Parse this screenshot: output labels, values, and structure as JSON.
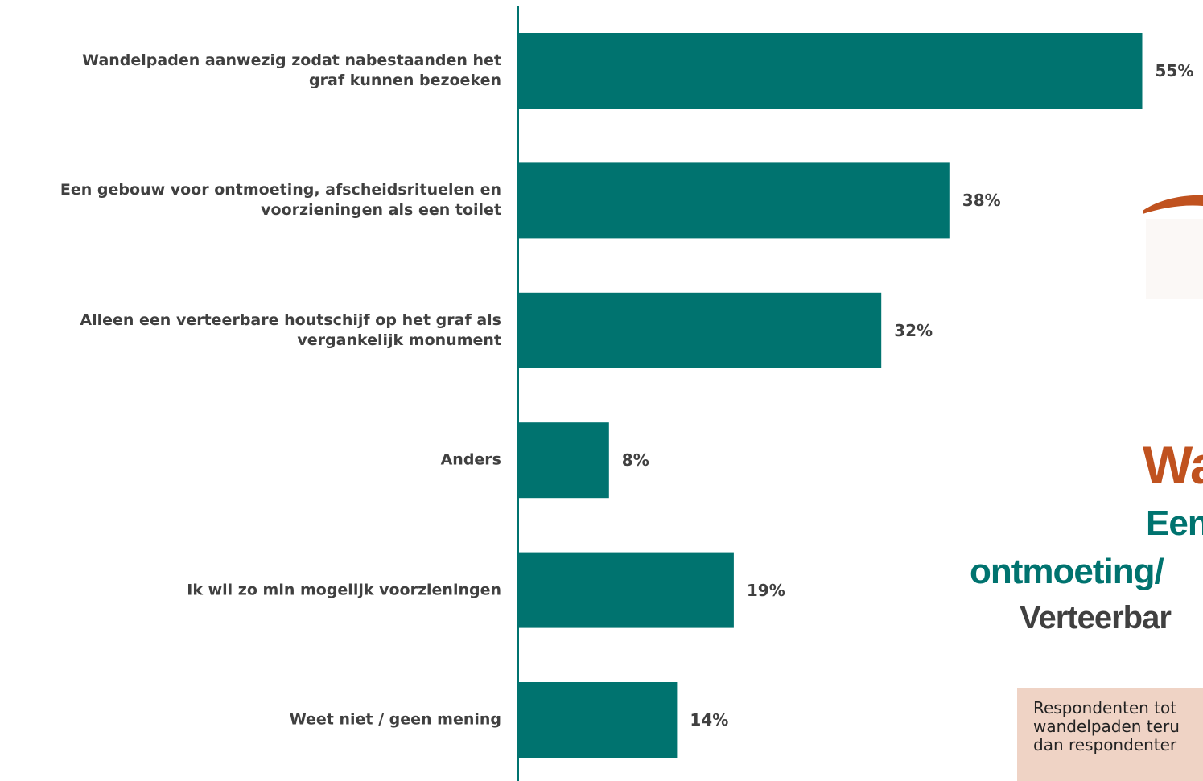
{
  "chart_data": {
    "type": "bar",
    "orientation": "horizontal",
    "categories": [
      "Wandelpaden aanwezig zodat nabestaanden het\ngraf kunnen bezoeken",
      "Een gebouw voor ontmoeting, afscheidsrituelen en\nvoorzieningen als een toilet",
      "Alleen een verteerbare houtschijf op het graf als\nvergankelijk monument",
      "Anders",
      "Ik wil zo min mogelijk voorzieningen",
      "Weet niet / geen mening"
    ],
    "values": [
      55,
      38,
      32,
      8,
      19,
      14
    ],
    "value_labels": [
      "55%",
      "38%",
      "32%",
      "8%",
      "19%",
      "14%"
    ],
    "color": "#00736f",
    "xlim": [
      0,
      60
    ]
  },
  "overlay": {
    "title_lines": [
      "Wa",
      "Een",
      "ontmoeting/",
      "Verteerbar"
    ],
    "note_lines": [
      "Respondenten tot",
      "wandelpaden teru",
      "dan respondenter"
    ]
  }
}
